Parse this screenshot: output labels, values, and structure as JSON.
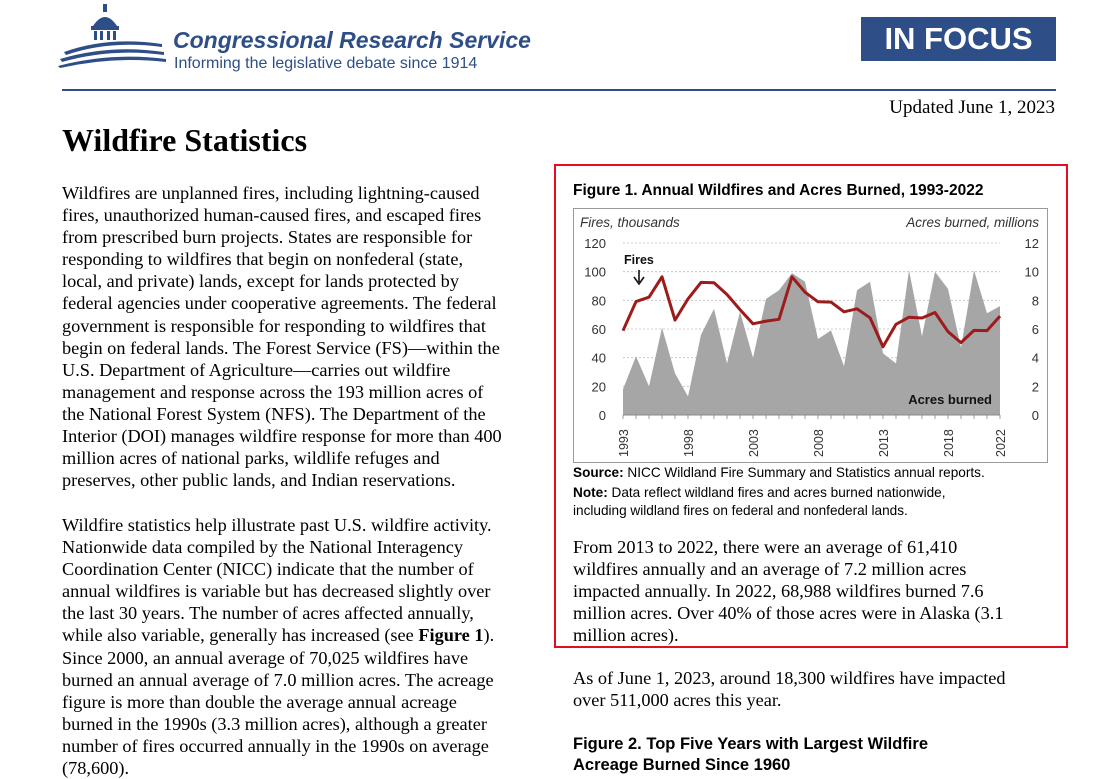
{
  "header": {
    "org_name": "Congressional Research Service",
    "tagline": "Informing the legislative debate since 1914",
    "badge": "IN FOCUS",
    "updated": "Updated June 1, 2023",
    "brand_color": "#2d4e86"
  },
  "title": "Wildfire Statistics",
  "para1": [
    "Wildfires are unplanned fires, including lightning-caused",
    "fires, unauthorized human-caused fires, and escaped fires",
    "from prescribed burn projects. States are responsible for",
    "responding to wildfires that begin on nonfederal (state,",
    "local, and private) lands, except for lands protected by",
    "federal agencies under cooperative agreements. The federal",
    "government is responsible for responding to wildfires that",
    "begin on federal lands. The Forest Service (FS)—within the",
    "U.S. Department of Agriculture—carries out wildfire",
    "management and response across the 193 million acres of",
    "the National Forest System (NFS). The Department of the",
    "Interior (DOI) manages wildfire response for more than 400",
    "million acres of national parks, wildlife refuges and",
    "preserves, other public lands, and Indian reservations."
  ],
  "para2": {
    "lines_before": [
      "Wildfire statistics help illustrate past U.S. wildfire activity.",
      "Nationwide data compiled by the National Interagency",
      "Coordination Center (NICC) indicate that the number of",
      "annual wildfires is variable but has decreased slightly over",
      "the last 30 years. The number of acres affected annually,"
    ],
    "line6_pre": "while also variable, generally has increased (see ",
    "line6_bold": "Figure 1",
    "line6_post": ").",
    "lines_after": [
      "Since 2000, an annual average of 70,025 wildfires have",
      "burned an annual average of 7.0 million acres. The acreage",
      "figure is more than double the average annual acreage",
      "burned in the 1990s (3.3 million acres), although a greater",
      "number of fires occurred annually in the 1990s on average",
      "(78,600)."
    ]
  },
  "figure1": {
    "title": "Figure 1. Annual Wildfires and Acres Burned, 1993-2022",
    "source_label": "Source:",
    "source_text": " NICC Wildland Fire Summary and Statistics annual reports.",
    "note_label": "Note:",
    "note_line1": " Data reflect wildland fires and acres burned nationwide,",
    "note_line2": "including wildland fires on federal and nonfederal lands.",
    "summary": [
      "From 2013 to 2022, there were an average of 61,410",
      "wildfires annually and an average of 7.2 million acres",
      "impacted annually. In 2022, 68,988 wildfires burned 7.6",
      "million acres. Over 40% of those acres were in Alaska (3.1",
      "million acres)."
    ],
    "box_color": "#e10f1f"
  },
  "chart_data": {
    "type": "area",
    "title": "Figure 1. Annual Wildfires and Acres Burned, 1993-2022",
    "x": [
      1993,
      1994,
      1995,
      1996,
      1997,
      1998,
      1999,
      2000,
      2001,
      2002,
      2003,
      2004,
      2005,
      2006,
      2007,
      2008,
      2009,
      2010,
      2011,
      2012,
      2013,
      2014,
      2015,
      2016,
      2017,
      2018,
      2019,
      2020,
      2021,
      2022
    ],
    "xticklabels": [
      "1993",
      "1998",
      "2003",
      "2008",
      "2013",
      "2018",
      "2022"
    ],
    "left_axis": {
      "label": "Fires, thousands",
      "ylim": [
        0,
        120
      ],
      "ticks": [
        0,
        20,
        40,
        60,
        80,
        100,
        120
      ]
    },
    "right_axis": {
      "label": "Acres burned, millions",
      "ylim": [
        0,
        12
      ],
      "ticks": [
        0,
        2,
        4,
        6,
        8,
        10,
        12
      ]
    },
    "grid": true,
    "series": [
      {
        "name": "Fires",
        "axis": "left",
        "kind": "line",
        "color": "#9e1b1b",
        "values": [
          58.8,
          79.1,
          82.2,
          96.4,
          66.2,
          81.0,
          92.5,
          92.2,
          84.1,
          73.5,
          63.6,
          65.5,
          66.8,
          96.4,
          85.7,
          79.0,
          78.8,
          72.0,
          74.1,
          67.8,
          47.6,
          63.3,
          68.2,
          67.7,
          71.5,
          58.1,
          50.5,
          59.0,
          58.9,
          69.0
        ]
      },
      {
        "name": "Acres burned",
        "axis": "right",
        "kind": "area",
        "color": "#a6a6a6",
        "values": [
          1.8,
          4.1,
          2.0,
          6.1,
          2.9,
          1.3,
          5.6,
          7.4,
          3.6,
          7.2,
          4.0,
          8.1,
          8.7,
          9.9,
          9.3,
          5.3,
          5.9,
          3.4,
          8.7,
          9.3,
          4.3,
          3.6,
          10.1,
          5.5,
          10.0,
          8.8,
          4.7,
          10.1,
          7.1,
          7.6
        ]
      }
    ],
    "annotations": [
      "Fires",
      "Acres burned"
    ]
  },
  "para3": [
    "As of June 1, 2023, around 18,300 wildfires have impacted",
    "over 511,000 acres this year."
  ],
  "figure2_title": [
    "Figure 2. Top Five Years with Largest Wildfire",
    "Acreage Burned Since 1960"
  ]
}
